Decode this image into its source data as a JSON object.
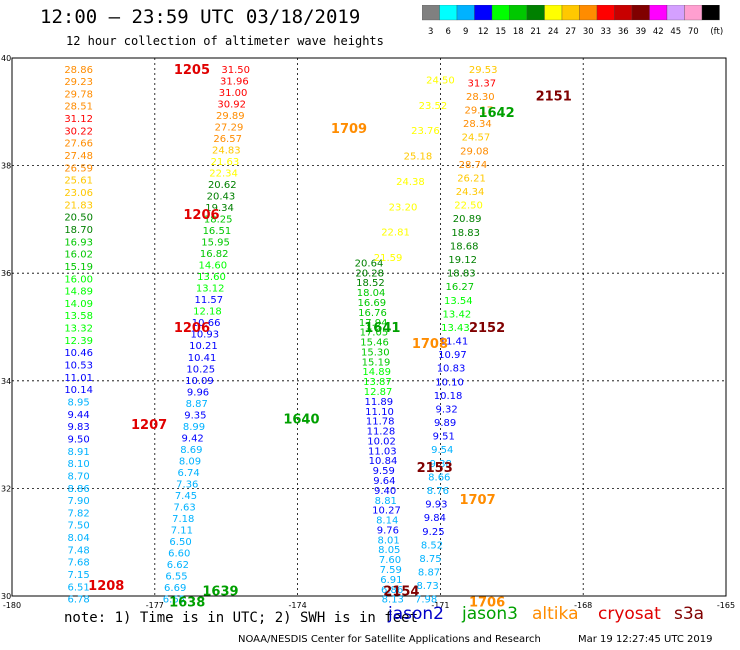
{
  "header": {
    "title": "12:00 – 23:59 UTC 03/18/2019",
    "subtitle": "12 hour collection of altimeter wave heights"
  },
  "colorbar": {
    "ticks": [
      "3",
      "6",
      "9",
      "12",
      "15",
      "18",
      "21",
      "24",
      "27",
      "30",
      "33",
      "36",
      "39",
      "42",
      "45",
      "70",
      "(ft)"
    ],
    "colors": [
      "#808080",
      "#00ffff",
      "#00b2ff",
      "#0000ff",
      "#00ff00",
      "#00c800",
      "#008000",
      "#ffff00",
      "#ffc800",
      "#ff8c00",
      "#ff0000",
      "#c80000",
      "#800000",
      "#ff00ff",
      "#d4a0ff",
      "#ff9fd0",
      "#000000"
    ]
  },
  "axes": {
    "lat_labels": [
      "40",
      "38",
      "36",
      "34",
      "32",
      "30"
    ],
    "lon_labels": [
      "-180",
      "-177",
      "-174",
      "-171",
      "-168",
      "-165"
    ]
  },
  "note": "note:  1) Time is in UTC; 2) SWH is in feet",
  "satellites": [
    {
      "name": "jason2",
      "color": "#0000c8"
    },
    {
      "name": "jason3",
      "color": "#00a000"
    },
    {
      "name": "altika",
      "color": "#ff8c00"
    },
    {
      "name": "cryosat",
      "color": "#e00000"
    },
    {
      "name": "s3a",
      "color": "#800000"
    }
  ],
  "footer": {
    "org": "NOAA/NESDIS Center for Satellite Applications and Research",
    "timestamp": "Mar 19 12:27:45 UTC 2019"
  },
  "tracks": [
    {
      "lat0": 39.8,
      "lat1": 29.95,
      "lon0": -178.6,
      "lon1": -178.6,
      "values": [
        "28.86",
        "29.23",
        "29.78",
        "28.51",
        "31.12",
        "30.22",
        "27.66",
        "27.48",
        "26.59",
        "25.61",
        "23.06",
        "21.83",
        "20.50",
        "18.70",
        "16.93",
        "16.02",
        "15.19",
        "16.00",
        "14.89",
        "14.09",
        "13.58",
        "13.32",
        "12.39",
        "10.46",
        "10.53",
        "11.01",
        "10.14",
        "8.95",
        "9.44",
        "9.83",
        "9.50",
        "8.91",
        "8.10",
        "8.70",
        "8.86",
        "7.90",
        "7.82",
        "7.50",
        "8.04",
        "7.48",
        "7.68",
        "7.15",
        "6.51",
        "6.78"
      ],
      "colors": [
        "#ff8c00",
        "#ff8c00",
        "#ff8c00",
        "#ff8c00",
        "#ff0000",
        "#ff0000",
        "#ff8c00",
        "#ff8c00",
        "#ff8c00",
        "#ffc800",
        "#ffc800",
        "#ffc800",
        "#008000",
        "#008000",
        "#00c800",
        "#00c800",
        "#00c800",
        "#00ff00",
        "#00ff00",
        "#00ff00",
        "#00ff00",
        "#00ff00",
        "#00ff00",
        "#0000ff",
        "#0000ff",
        "#0000ff",
        "#0000ff",
        "#00b2ff",
        "#0000ff",
        "#0000ff",
        "#0000ff",
        "#00b2ff",
        "#00b2ff",
        "#00b2ff",
        "#00b2ff",
        "#00b2ff",
        "#00b2ff",
        "#00b2ff",
        "#00b2ff",
        "#00b2ff",
        "#00b2ff",
        "#00b2ff",
        "#00b2ff",
        "#00b2ff"
      ]
    },
    {
      "lat0": 39.8,
      "lat1": 29.95,
      "lon0": -175.3,
      "lon1": -176.6,
      "values": [
        "31.50",
        "31.96",
        "31.00",
        "30.92",
        "29.89",
        "27.29",
        "26.57",
        "24.83",
        "21.63",
        "22.34",
        "20.62",
        "20.43",
        "19.34",
        "18.25",
        "16.51",
        "15.95",
        "16.82",
        "14.60",
        "13.60",
        "13.12",
        "11.57",
        "12.18",
        "10.66",
        "10.93",
        "10.21",
        "10.41",
        "10.25",
        "10.09",
        "9.96",
        "8.87",
        "9.35",
        "8.99",
        "9.42",
        "8.69",
        "8.09",
        "6.74",
        "7.36",
        "7.45",
        "7.63",
        "7.18",
        "7.11",
        "6.50",
        "6.60",
        "6.62",
        "6.55",
        "6.69",
        "6.65"
      ],
      "colors": [
        "#ff0000",
        "#ff0000",
        "#ff0000",
        "#ff0000",
        "#ff8c00",
        "#ff8c00",
        "#ff8c00",
        "#ffc800",
        "#ffff00",
        "#ffff00",
        "#008000",
        "#008000",
        "#008000",
        "#00c800",
        "#00c800",
        "#00c800",
        "#00c800",
        "#00ff00",
        "#00ff00",
        "#00ff00",
        "#0000ff",
        "#00ff00",
        "#0000ff",
        "#0000ff",
        "#0000ff",
        "#0000ff",
        "#0000ff",
        "#0000ff",
        "#0000ff",
        "#00b2ff",
        "#0000ff",
        "#00b2ff",
        "#0000ff",
        "#00b2ff",
        "#00b2ff",
        "#00b2ff",
        "#00b2ff",
        "#00b2ff",
        "#00b2ff",
        "#00b2ff",
        "#00b2ff",
        "#00b2ff",
        "#00b2ff",
        "#00b2ff",
        "#00b2ff",
        "#00b2ff",
        "#00b2ff"
      ]
    },
    {
      "lat0": 36.2,
      "lat1": 29.95,
      "lon0": -172.5,
      "lon1": -172.0,
      "values": [
        "20.64",
        "20.28",
        "18.52",
        "18.04",
        "16.69",
        "16.76",
        "17.94",
        "17.05",
        "15.46",
        "15.30",
        "15.19",
        "14.89",
        "13.87",
        "12.87",
        "11.89",
        "11.10",
        "11.78",
        "11.28",
        "10.02",
        "11.03",
        "10.84",
        "9.59",
        "9.64",
        "9.40",
        "8.81",
        "10.27",
        "8.14",
        "9.76",
        "8.01",
        "8.05",
        "7.60",
        "7.59",
        "6.91",
        "6.86",
        "8.13"
      ],
      "colors": [
        "#008000",
        "#008000",
        "#008000",
        "#00c800",
        "#00c800",
        "#00c800",
        "#00c800",
        "#00c800",
        "#00c800",
        "#00c800",
        "#00c800",
        "#00ff00",
        "#00ff00",
        "#00ff00",
        "#0000ff",
        "#0000ff",
        "#0000ff",
        "#0000ff",
        "#0000ff",
        "#0000ff",
        "#0000ff",
        "#0000ff",
        "#0000ff",
        "#0000ff",
        "#00b2ff",
        "#0000ff",
        "#00b2ff",
        "#0000ff",
        "#00b2ff",
        "#00b2ff",
        "#00b2ff",
        "#00b2ff",
        "#00b2ff",
        "#00b2ff",
        "#00b2ff"
      ]
    },
    {
      "lat0": 39.8,
      "lat1": 29.95,
      "lon0": -170.1,
      "lon1": -171.3,
      "values": [
        "29.53",
        "31.37",
        "28.30",
        "29.17",
        "28.34",
        "24.57",
        "29.08",
        "28.74",
        "26.21",
        "24.34",
        "22.50",
        "20.89",
        "18.83",
        "18.68",
        "19.12",
        "18.83",
        "16.27",
        "13.54",
        "13.42",
        "13.43",
        "11.41",
        "10.97",
        "10.83",
        "10.10",
        "10.18",
        "9.32",
        "9.89",
        "9.51",
        "9.54",
        "9.38",
        "8.66",
        "8.76",
        "9.93",
        "9.84",
        "9.25",
        "8.52",
        "8.75",
        "8.87",
        "8.73",
        "7.98"
      ],
      "colors": [
        "#ffc800",
        "#ff0000",
        "#ff8c00",
        "#ff8c00",
        "#ff8c00",
        "#ffc800",
        "#ff8c00",
        "#ff8c00",
        "#ffc800",
        "#ffc800",
        "#ffff00",
        "#008000",
        "#008000",
        "#008000",
        "#008000",
        "#008000",
        "#00c800",
        "#00ff00",
        "#00ff00",
        "#00ff00",
        "#0000ff",
        "#0000ff",
        "#0000ff",
        "#0000ff",
        "#0000ff",
        "#0000ff",
        "#0000ff",
        "#0000ff",
        "#00b2ff",
        "#00b2ff",
        "#00b2ff",
        "#00b2ff",
        "#0000ff",
        "#0000ff",
        "#0000ff",
        "#00b2ff",
        "#00b2ff",
        "#00b2ff",
        "#00b2ff",
        "#00b2ff"
      ]
    },
    {
      "lat0": 39.6,
      "lat1": 36.3,
      "lon0": -171.0,
      "lon1": -172.1,
      "values": [
        "24.50",
        "23.52",
        "23.76",
        "25.18",
        "24.38",
        "23.20",
        "22.81",
        "21.59"
      ],
      "colors": [
        "#ffff00",
        "#ffff00",
        "#ffff00",
        "#ffc800",
        "#ffff00",
        "#ffff00",
        "#ffff00",
        "#ffff00"
      ]
    }
  ],
  "time_labels": [
    {
      "text": "1205",
      "lat": 39.8,
      "lon": -176.6,
      "color": "#e00000"
    },
    {
      "text": "1206",
      "lat": 37.1,
      "lon": -176.4,
      "color": "#e00000"
    },
    {
      "text": "1206",
      "lat": 35.0,
      "lon": -176.6,
      "color": "#e00000"
    },
    {
      "text": "1207",
      "lat": 33.2,
      "lon": -177.5,
      "color": "#e00000"
    },
    {
      "text": "1208",
      "lat": 30.2,
      "lon": -178.4,
      "color": "#e00000"
    },
    {
      "text": "1709",
      "lat": 38.7,
      "lon": -173.3,
      "color": "#ff8c00"
    },
    {
      "text": "1708",
      "lat": 34.7,
      "lon": -171.6,
      "color": "#ff8c00"
    },
    {
      "text": "1707",
      "lat": 31.8,
      "lon": -170.6,
      "color": "#ff8c00"
    },
    {
      "text": "1706",
      "lat": 29.9,
      "lon": -170.4,
      "color": "#ff8c00"
    },
    {
      "text": "1640",
      "lat": 33.3,
      "lon": -174.3,
      "color": "#00a000"
    },
    {
      "text": "1641",
      "lat": 35.0,
      "lon": -172.6,
      "color": "#00a000"
    },
    {
      "text": "1642",
      "lat": 39.0,
      "lon": -170.2,
      "color": "#00a000"
    },
    {
      "text": "1639",
      "lat": 30.1,
      "lon": -176.0,
      "color": "#00a000"
    },
    {
      "text": "1638",
      "lat": 29.9,
      "lon": -176.7,
      "color": "#00a000"
    },
    {
      "text": "2151",
      "lat": 39.3,
      "lon": -169.0,
      "color": "#800000"
    },
    {
      "text": "2152",
      "lat": 35.0,
      "lon": -170.4,
      "color": "#800000"
    },
    {
      "text": "2153",
      "lat": 32.4,
      "lon": -171.5,
      "color": "#800000"
    },
    {
      "text": "2154",
      "lat": 30.1,
      "lon": -172.2,
      "color": "#800000"
    }
  ]
}
